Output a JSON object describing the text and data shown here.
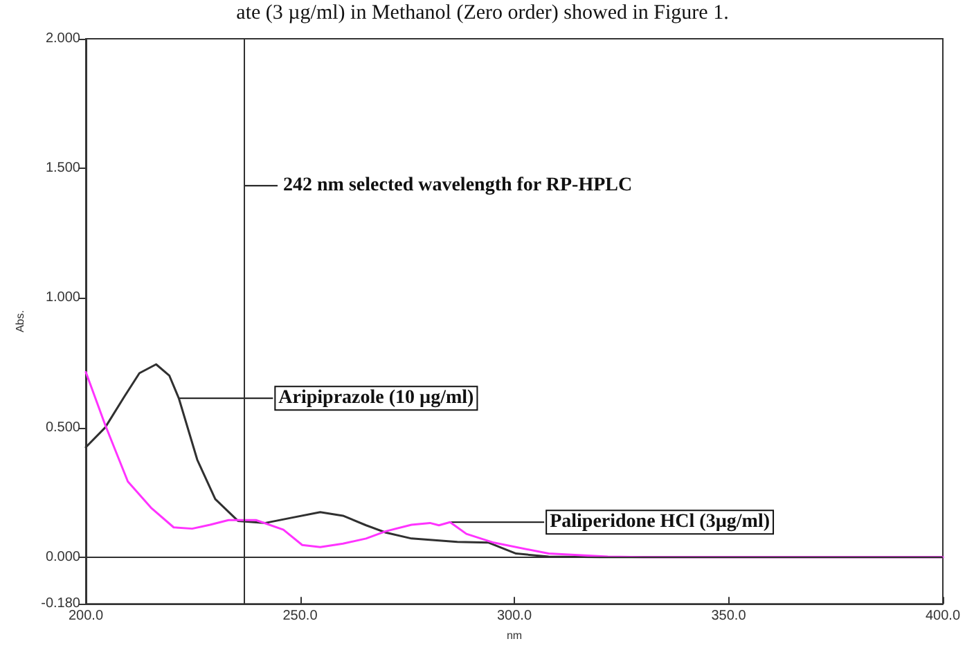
{
  "chart_data": {
    "type": "line",
    "xlabel": "nm",
    "ylabel": "Abs.",
    "xlim": [
      200,
      400
    ],
    "xticks": [
      {
        "value": 200,
        "label": "200.0"
      },
      {
        "value": 250,
        "label": "250.0"
      },
      {
        "value": 300,
        "label": "300.0"
      },
      {
        "value": 350,
        "label": "350.0"
      },
      {
        "value": 400,
        "label": "400.0"
      }
    ],
    "ylim": [
      -0.18,
      2
    ],
    "yticks": [
      {
        "value": -0.18,
        "label": "-0.180"
      },
      {
        "value": 0,
        "label": "0.000"
      },
      {
        "value": 0.5,
        "label": "0.500"
      },
      {
        "value": 1,
        "label": "1.000"
      },
      {
        "value": 1.5,
        "label": "1.500"
      },
      {
        "value": 2,
        "label": "2.000"
      }
    ],
    "grid": false,
    "marker": "none",
    "line_style": "solid",
    "series": [
      {
        "color": "#303030",
        "x": [
          200,
          204.5,
          209,
          212.5,
          216.4,
          219.5,
          221.7,
          226,
          230.2,
          235.5,
          241.9,
          248,
          254.7,
          260,
          265.4,
          270,
          276,
          286.7,
          294,
          300.4,
          308,
          320,
          340,
          370,
          400
        ],
        "values": [
          0.424,
          0.5,
          0.62,
          0.71,
          0.744,
          0.7,
          0.613,
          0.376,
          0.224,
          0.14,
          0.132,
          0.152,
          0.174,
          0.16,
          0.123,
          0.095,
          0.072,
          0.059,
          0.056,
          0.014,
          0.002,
          0,
          0,
          0,
          0
        ]
      },
      {
        "color": "#ff33ff",
        "x": [
          200,
          204.5,
          209.8,
          215.2,
          220.5,
          224.8,
          229,
          233.3,
          239.7,
          246.1,
          250.5,
          254.7,
          260,
          265.4,
          270,
          276,
          280.3,
          282.4,
          285,
          288.8,
          295.2,
          308,
          321.8,
          330,
          360,
          400
        ],
        "values": [
          0.714,
          0.511,
          0.292,
          0.191,
          0.115,
          0.11,
          0.125,
          0.143,
          0.143,
          0.106,
          0.047,
          0.039,
          0.052,
          0.072,
          0.1,
          0.125,
          0.132,
          0.123,
          0.135,
          0.09,
          0.056,
          0.014,
          0.002,
          0,
          0,
          0
        ]
      }
    ],
    "ref_lines": [
      {
        "axis": "x",
        "value": 237,
        "label": "242 nm selected wavelength for RP-HPLC",
        "color": "#303030"
      },
      {
        "axis": "y",
        "value": 0,
        "color": "#303030"
      }
    ],
    "annotations": [
      "ate (3 µg/ml) in Methanol (Zero order) showed in Figure 1.",
      {
        "text": "Aripiprazole (10 µg/ml)",
        "x": 221.7,
        "y": 0.613
      },
      {
        "text": "Paliperidone HCl (3µg/ml)",
        "x": 285,
        "y": 0.135
      }
    ]
  }
}
